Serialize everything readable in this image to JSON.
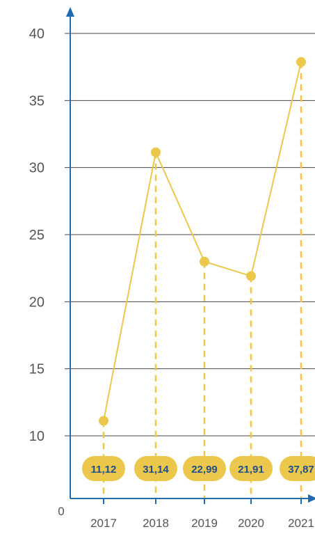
{
  "chart_data": {
    "type": "line",
    "categories": [
      "2017",
      "2018",
      "2019",
      "2020",
      "2021"
    ],
    "values": [
      11.12,
      31.14,
      22.99,
      21.91,
      37.87
    ],
    "value_labels": [
      "11,12",
      "31,14",
      "22,99",
      "21,91",
      "37,87"
    ],
    "y_ticks": [
      10,
      15,
      20,
      25,
      30,
      35,
      40
    ],
    "origin_label": "0",
    "ylim": [
      0,
      40
    ],
    "grid": true,
    "title": "",
    "xlabel": "",
    "ylabel": ""
  },
  "colors": {
    "series": "#ebc84c",
    "badge": "#ebc84c",
    "badge_text": "#1f4e8c",
    "axis": "#1f6db0",
    "grid": "#444444",
    "tick_text": "#555555"
  }
}
